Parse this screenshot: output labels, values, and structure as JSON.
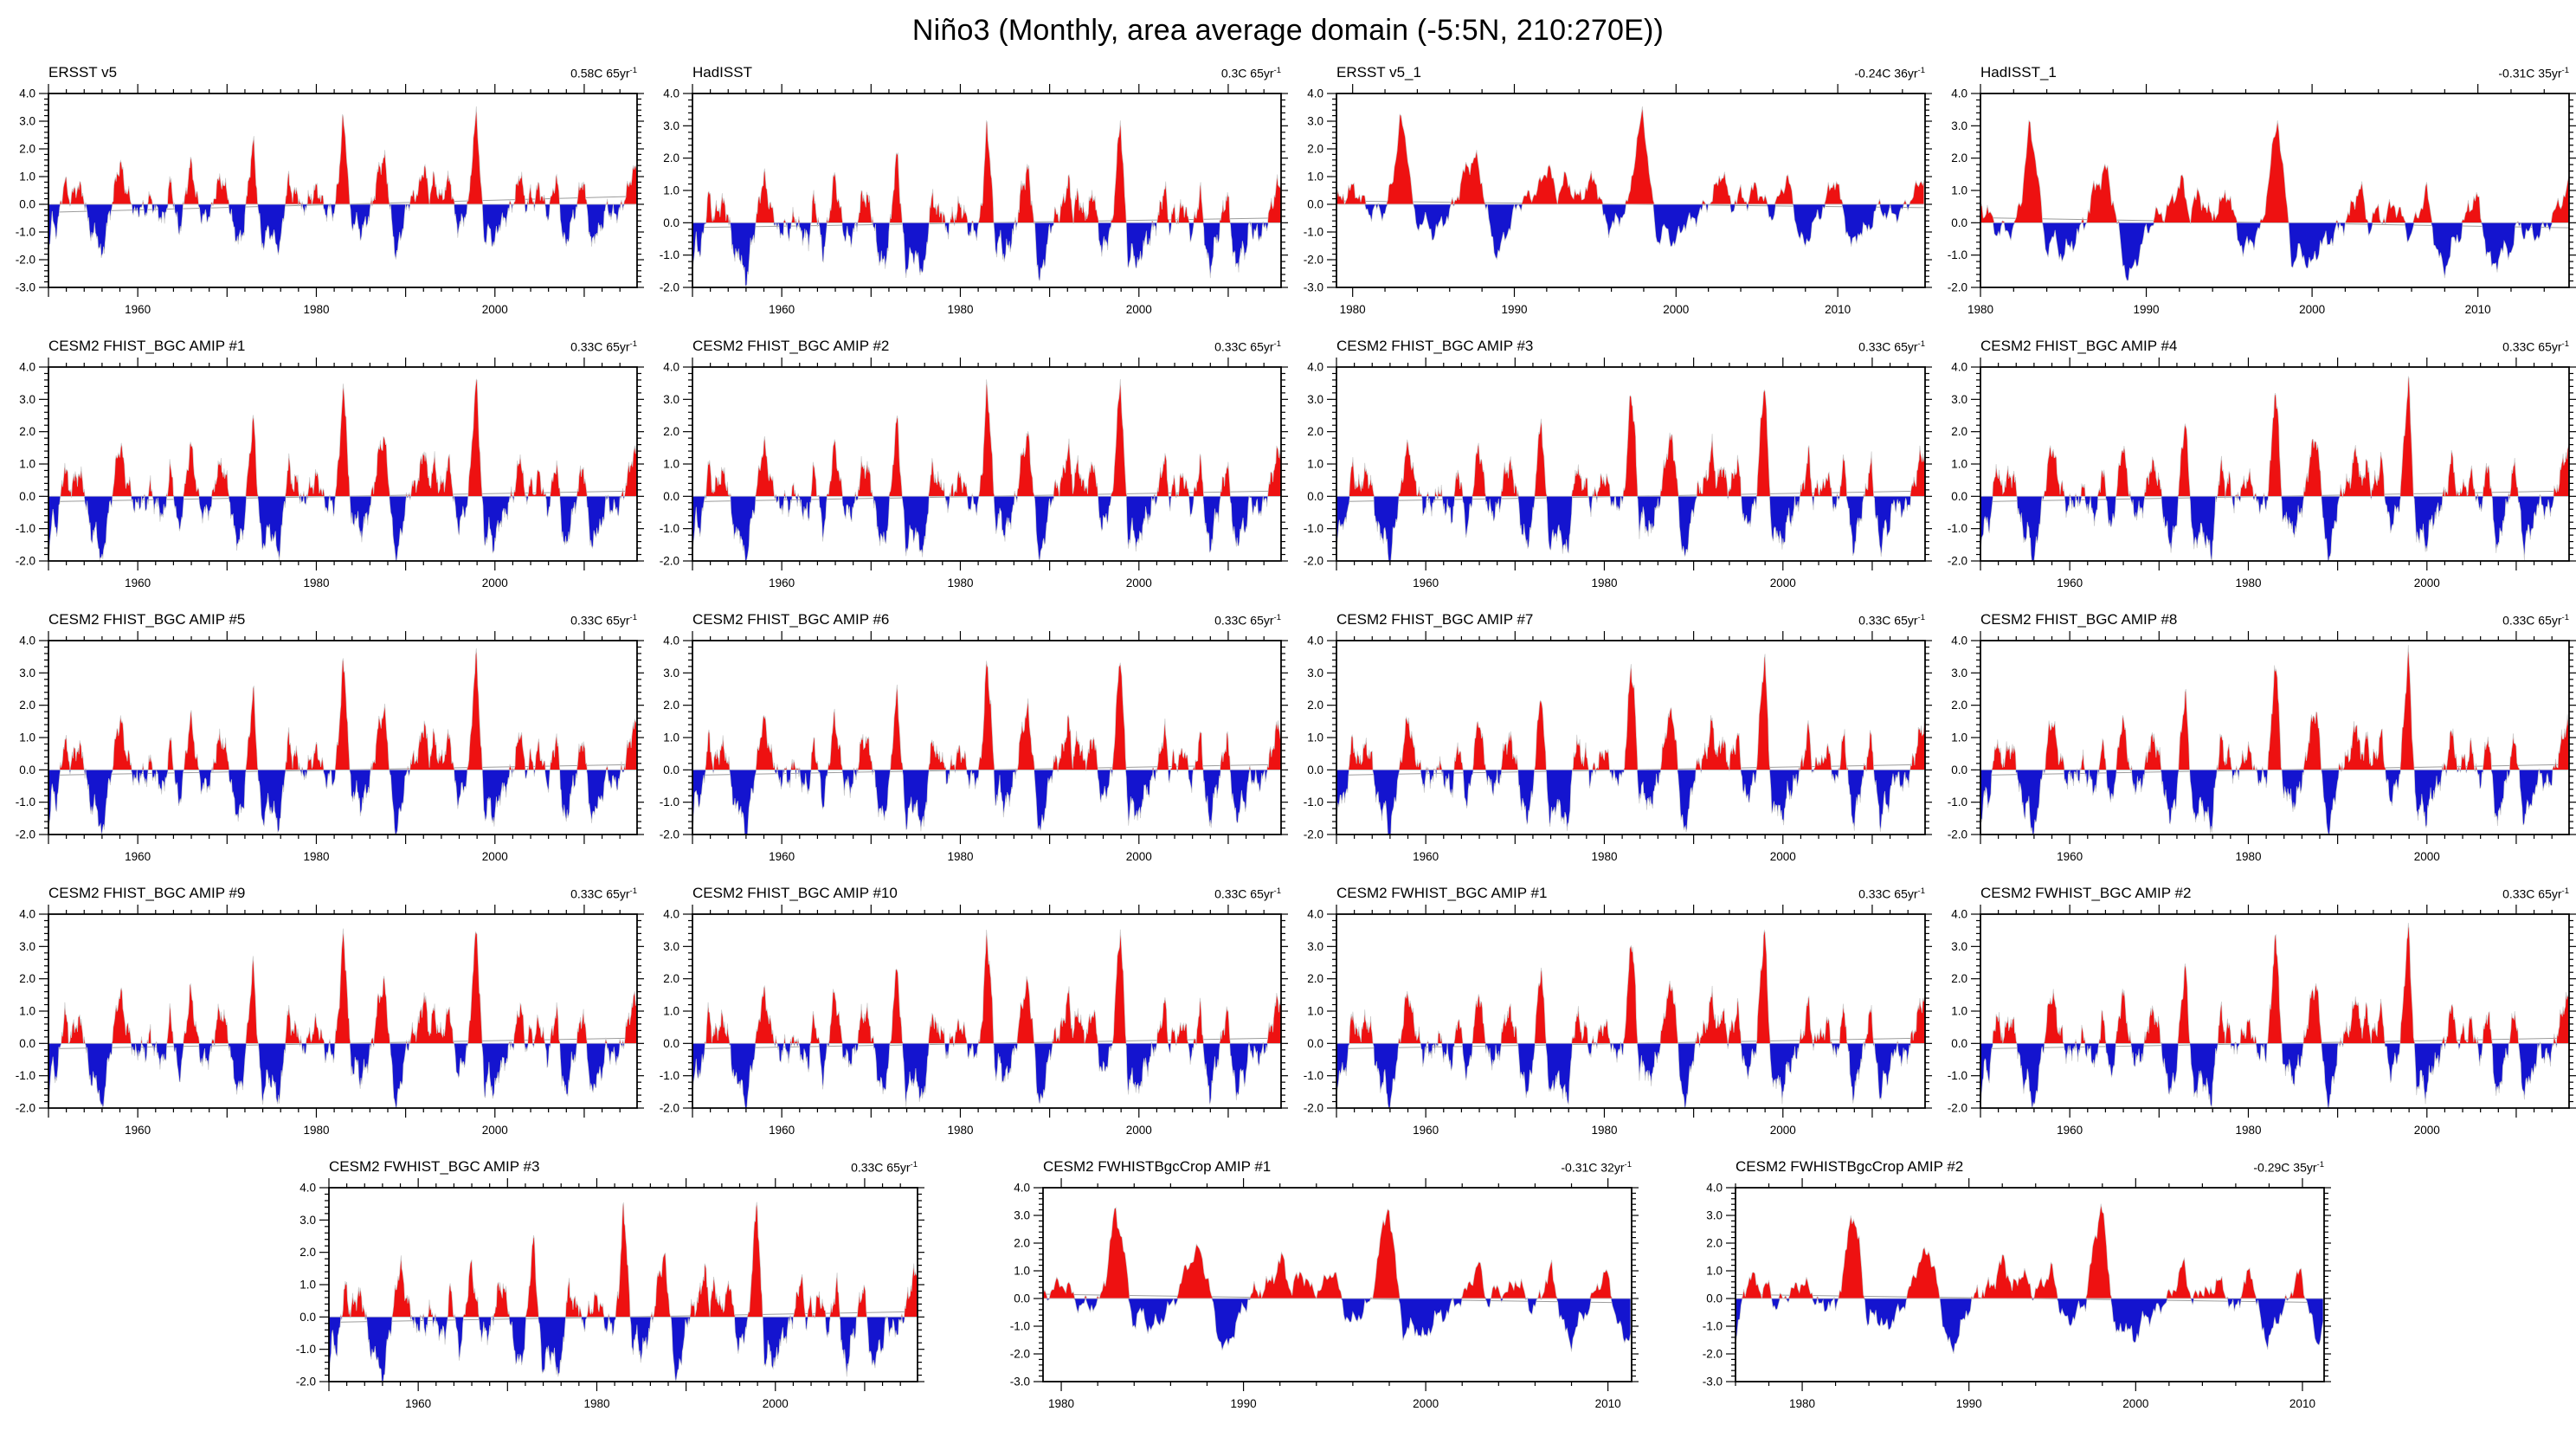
{
  "page": {
    "title": "Niño3 (Monthly, area average domain (-5:5N, 210:270E))"
  },
  "chart_data": {
    "type": "area",
    "description": "Monthly Niño3 SST anomaly time series (degC), red above zero and blue below, with gray zero line and gray linear trend line in each panel",
    "units": "C",
    "legend_position": "none",
    "grid": false,
    "colors": {
      "positive": "#ee1111",
      "negative": "#1414cf",
      "outline": "#c9c9c9",
      "zero_line": "#a9a9a9",
      "trend_line": "#9c9c9c",
      "frame": "#000000"
    },
    "y_minor_step": 0.2,
    "x_minor_step": 2,
    "noise": {
      "a1": 0.2,
      "f1": 8.1,
      "a2": 0.13,
      "f2": 19.7,
      "a3": 0.09,
      "f3": 37.3
    },
    "base_profile": [
      [
        1950.0,
        -1.7
      ],
      [
        1950.4,
        -0.6
      ],
      [
        1950.9,
        -1.0
      ],
      [
        1951.3,
        -0.2
      ],
      [
        1951.8,
        1.0
      ],
      [
        1952.3,
        0.2
      ],
      [
        1952.8,
        0.4
      ],
      [
        1953.3,
        0.7
      ],
      [
        1953.9,
        0.4
      ],
      [
        1954.4,
        -0.6
      ],
      [
        1954.9,
        -1.2
      ],
      [
        1955.4,
        -1.0
      ],
      [
        1955.95,
        -2.1
      ],
      [
        1956.5,
        -0.9
      ],
      [
        1957.1,
        0.0
      ],
      [
        1957.7,
        1.2
      ],
      [
        1958.1,
        1.5
      ],
      [
        1958.7,
        0.5
      ],
      [
        1959.2,
        0.2
      ],
      [
        1959.7,
        -0.4
      ],
      [
        1960.3,
        -0.1
      ],
      [
        1960.9,
        -0.3
      ],
      [
        1961.4,
        0.3
      ],
      [
        1961.9,
        -0.2
      ],
      [
        1962.5,
        -0.4
      ],
      [
        1963.0,
        -0.6
      ],
      [
        1963.6,
        0.9
      ],
      [
        1964.0,
        0.2
      ],
      [
        1964.6,
        -1.1
      ],
      [
        1965.1,
        -0.2
      ],
      [
        1965.9,
        1.6
      ],
      [
        1966.4,
        0.7
      ],
      [
        1967.0,
        -0.4
      ],
      [
        1967.7,
        -0.5
      ],
      [
        1968.3,
        -0.2
      ],
      [
        1968.9,
        0.8
      ],
      [
        1969.5,
        0.9
      ],
      [
        1970.1,
        0.3
      ],
      [
        1970.7,
        -0.9
      ],
      [
        1971.3,
        -1.4
      ],
      [
        1971.9,
        -0.9
      ],
      [
        1972.4,
        0.9
      ],
      [
        1972.95,
        2.4
      ],
      [
        1973.4,
        0.3
      ],
      [
        1973.9,
        -1.6
      ],
      [
        1974.5,
        -1.0
      ],
      [
        1975.0,
        -1.1
      ],
      [
        1975.9,
        -1.7
      ],
      [
        1976.4,
        -0.2
      ],
      [
        1976.9,
        1.0
      ],
      [
        1977.4,
        0.3
      ],
      [
        1977.9,
        0.5
      ],
      [
        1978.4,
        -0.3
      ],
      [
        1979.0,
        0.1
      ],
      [
        1979.5,
        0.3
      ],
      [
        1979.95,
        0.6
      ],
      [
        1980.5,
        0.3
      ],
      [
        1981.0,
        -0.3
      ],
      [
        1981.5,
        -0.2
      ],
      [
        1982.0,
        -0.3
      ],
      [
        1982.5,
        1.0
      ],
      [
        1982.95,
        3.25
      ],
      [
        1983.4,
        2.0
      ],
      [
        1983.9,
        -0.9
      ],
      [
        1984.4,
        -0.5
      ],
      [
        1984.9,
        -1.1
      ],
      [
        1985.4,
        -0.8
      ],
      [
        1985.9,
        -0.4
      ],
      [
        1986.4,
        0.2
      ],
      [
        1986.9,
        1.2
      ],
      [
        1987.6,
        1.8
      ],
      [
        1988.1,
        0.5
      ],
      [
        1988.6,
        -1.3
      ],
      [
        1988.95,
        -1.9
      ],
      [
        1989.5,
        -1.1
      ],
      [
        1990.0,
        -0.3
      ],
      [
        1990.5,
        0.2
      ],
      [
        1991.0,
        0.3
      ],
      [
        1991.5,
        0.6
      ],
      [
        1992.1,
        1.5
      ],
      [
        1992.6,
        0.3
      ],
      [
        1993.2,
        1.0
      ],
      [
        1993.8,
        0.2
      ],
      [
        1994.4,
        0.5
      ],
      [
        1994.95,
        1.1
      ],
      [
        1995.5,
        -0.4
      ],
      [
        1995.9,
        -0.9
      ],
      [
        1996.5,
        -0.5
      ],
      [
        1997.0,
        -0.1
      ],
      [
        1997.5,
        2.0
      ],
      [
        1997.95,
        3.5
      ],
      [
        1998.35,
        1.2
      ],
      [
        1998.8,
        -1.4
      ],
      [
        1999.3,
        -0.9
      ],
      [
        1999.9,
        -1.5
      ],
      [
        2000.5,
        -0.7
      ],
      [
        2001.0,
        -0.6
      ],
      [
        2001.6,
        -0.2
      ],
      [
        2002.2,
        0.2
      ],
      [
        2002.9,
        1.3
      ],
      [
        2003.4,
        -0.2
      ],
      [
        2003.9,
        0.4
      ],
      [
        2004.4,
        0.1
      ],
      [
        2004.9,
        0.7
      ],
      [
        2005.4,
        0.2
      ],
      [
        2005.9,
        -0.5
      ],
      [
        2006.4,
        0.3
      ],
      [
        2006.9,
        1.1
      ],
      [
        2007.5,
        -0.9
      ],
      [
        2007.95,
        -1.6
      ],
      [
        2008.5,
        -0.7
      ],
      [
        2008.9,
        -0.4
      ],
      [
        2009.4,
        0.4
      ],
      [
        2009.9,
        1.0
      ],
      [
        2010.4,
        -0.5
      ],
      [
        2010.9,
        -1.6
      ],
      [
        2011.4,
        -0.9
      ],
      [
        2011.9,
        -1.0
      ],
      [
        2012.4,
        -0.1
      ],
      [
        2012.9,
        -0.3
      ],
      [
        2013.4,
        -0.4
      ],
      [
        2013.9,
        -0.3
      ],
      [
        2014.4,
        0.1
      ],
      [
        2014.9,
        0.6
      ],
      [
        2015.4,
        1.2
      ],
      [
        2015.92,
        1.3
      ]
    ],
    "charts": [
      {
        "title": "ERSST v5",
        "trend_label": "0.58C 65yr",
        "trend_sup": "-1",
        "trend_value": 0.58,
        "y_range": [
          -3,
          4
        ],
        "x_range": [
          1950,
          2015.92
        ],
        "x_labels": [
          1960,
          1980,
          2000
        ],
        "row": 1,
        "col": 1,
        "amp": 0.97,
        "seed": 3
      },
      {
        "title": "HadISST",
        "trend_label": "0.3C 65yr",
        "trend_sup": "-1",
        "trend_value": 0.3,
        "y_range": [
          -2,
          4
        ],
        "x_range": [
          1950,
          2015.92
        ],
        "x_labels": [
          1960,
          1980,
          2000
        ],
        "row": 1,
        "col": 2,
        "amp": 0.93,
        "seed": 11
      },
      {
        "title": "ERSST v5_1",
        "trend_label": "-0.24C 36yr",
        "trend_sup": "-1",
        "trend_value": -0.24,
        "y_range": [
          -3,
          4
        ],
        "x_range": [
          1979,
          2015.4
        ],
        "x_labels": [
          1980,
          1990,
          2000,
          2010
        ],
        "row": 1,
        "col": 3,
        "amp": 0.97,
        "seed": 3
      },
      {
        "title": "HadISST_1",
        "trend_label": "-0.31C 35yr",
        "trend_sup": "-1",
        "trend_value": -0.31,
        "y_range": [
          -2,
          4
        ],
        "x_range": [
          1980,
          2015.5
        ],
        "x_labels": [
          1980,
          1990,
          2000,
          2010
        ],
        "row": 1,
        "col": 4,
        "amp": 0.93,
        "seed": 11
      },
      {
        "title": "CESM2 FHIST_BGC AMIP #1",
        "trend_label": "0.33C 65yr",
        "trend_sup": "-1",
        "trend_value": 0.33,
        "y_range": [
          -2,
          4
        ],
        "x_range": [
          1950,
          2015.92
        ],
        "x_labels": [
          1960,
          1980,
          2000
        ],
        "row": 2,
        "col": 1,
        "amp": 1.05,
        "seed": 21
      },
      {
        "title": "CESM2 FHIST_BGC AMIP #2",
        "trend_label": "0.33C 65yr",
        "trend_sup": "-1",
        "trend_value": 0.33,
        "y_range": [
          -2,
          4
        ],
        "x_range": [
          1950,
          2015.92
        ],
        "x_labels": [
          1960,
          1980,
          2000
        ],
        "row": 2,
        "col": 2,
        "amp": 1.05,
        "seed": 22
      },
      {
        "title": "CESM2 FHIST_BGC AMIP #3",
        "trend_label": "0.33C 65yr",
        "trend_sup": "-1",
        "trend_value": 0.33,
        "y_range": [
          -2,
          4
        ],
        "x_range": [
          1950,
          2015.92
        ],
        "x_labels": [
          1960,
          1980,
          2000
        ],
        "row": 2,
        "col": 3,
        "amp": 1.05,
        "seed": 23
      },
      {
        "title": "CESM2 FHIST_BGC AMIP #4",
        "trend_label": "0.33C 65yr",
        "trend_sup": "-1",
        "trend_value": 0.33,
        "y_range": [
          -2,
          4
        ],
        "x_range": [
          1950,
          2015.92
        ],
        "x_labels": [
          1960,
          1980,
          2000
        ],
        "row": 2,
        "col": 4,
        "amp": 1.05,
        "seed": 24
      },
      {
        "title": "CESM2 FHIST_BGC AMIP #5",
        "trend_label": "0.33C 65yr",
        "trend_sup": "-1",
        "trend_value": 0.33,
        "y_range": [
          -2,
          4
        ],
        "x_range": [
          1950,
          2015.92
        ],
        "x_labels": [
          1960,
          1980,
          2000
        ],
        "row": 3,
        "col": 1,
        "amp": 1.05,
        "seed": 25
      },
      {
        "title": "CESM2 FHIST_BGC AMIP #6",
        "trend_label": "0.33C 65yr",
        "trend_sup": "-1",
        "trend_value": 0.33,
        "y_range": [
          -2,
          4
        ],
        "x_range": [
          1950,
          2015.92
        ],
        "x_labels": [
          1960,
          1980,
          2000
        ],
        "row": 3,
        "col": 2,
        "amp": 1.05,
        "seed": 26
      },
      {
        "title": "CESM2 FHIST_BGC AMIP #7",
        "trend_label": "0.33C 65yr",
        "trend_sup": "-1",
        "trend_value": 0.33,
        "y_range": [
          -2,
          4
        ],
        "x_range": [
          1950,
          2015.92
        ],
        "x_labels": [
          1960,
          1980,
          2000
        ],
        "row": 3,
        "col": 3,
        "amp": 1.05,
        "seed": 27
      },
      {
        "title": "CESM2 FHIST_BGC AMIP #8",
        "trend_label": "0.33C 65yr",
        "trend_sup": "-1",
        "trend_value": 0.33,
        "y_range": [
          -2,
          4
        ],
        "x_range": [
          1950,
          2015.92
        ],
        "x_labels": [
          1960,
          1980,
          2000
        ],
        "row": 3,
        "col": 4,
        "amp": 1.05,
        "seed": 28
      },
      {
        "title": "CESM2 FHIST_BGC AMIP #9",
        "trend_label": "0.33C 65yr",
        "trend_sup": "-1",
        "trend_value": 0.33,
        "y_range": [
          -2,
          4
        ],
        "x_range": [
          1950,
          2015.92
        ],
        "x_labels": [
          1960,
          1980,
          2000
        ],
        "row": 4,
        "col": 1,
        "amp": 1.05,
        "seed": 29
      },
      {
        "title": "CESM2 FHIST_BGC AMIP #10",
        "trend_label": "0.33C 65yr",
        "trend_sup": "-1",
        "trend_value": 0.33,
        "y_range": [
          -2,
          4
        ],
        "x_range": [
          1950,
          2015.92
        ],
        "x_labels": [
          1960,
          1980,
          2000
        ],
        "row": 4,
        "col": 2,
        "amp": 1.05,
        "seed": 30
      },
      {
        "title": "CESM2 FWHIST_BGC AMIP #1",
        "trend_label": "0.33C 65yr",
        "trend_sup": "-1",
        "trend_value": 0.33,
        "y_range": [
          -2,
          4
        ],
        "x_range": [
          1950,
          2015.92
        ],
        "x_labels": [
          1960,
          1980,
          2000
        ],
        "row": 4,
        "col": 3,
        "amp": 1.05,
        "seed": 31
      },
      {
        "title": "CESM2 FWHIST_BGC AMIP #2",
        "trend_label": "0.33C 65yr",
        "trend_sup": "-1",
        "trend_value": 0.33,
        "y_range": [
          -2,
          4
        ],
        "x_range": [
          1950,
          2015.92
        ],
        "x_labels": [
          1960,
          1980,
          2000
        ],
        "row": 4,
        "col": 4,
        "amp": 1.05,
        "seed": 32
      },
      {
        "title": "CESM2 FWHIST_BGC AMIP #3",
        "trend_label": "0.33C 65yr",
        "trend_sup": "-1",
        "trend_value": 0.33,
        "y_range": [
          -2,
          4
        ],
        "x_range": [
          1950,
          2015.92
        ],
        "x_labels": [
          1960,
          1980,
          2000
        ],
        "row": 5,
        "col": 1,
        "amp": 1.05,
        "seed": 33
      },
      {
        "title": "CESM2 FWHISTBgcCrop AMIP #1",
        "trend_label": "-0.31C 32yr",
        "trend_sup": "-1",
        "trend_value": -0.31,
        "y_range": [
          -3,
          4
        ],
        "x_range": [
          1979,
          2011.3
        ],
        "x_labels": [
          1980,
          1990,
          2000,
          2010
        ],
        "row": 5,
        "col": 2,
        "amp": 1.0,
        "seed": 41
      },
      {
        "title": "CESM2 FWHISTBgcCrop AMIP #2",
        "trend_label": "-0.29C 35yr",
        "trend_sup": "-1",
        "trend_value": -0.29,
        "y_range": [
          -3,
          4
        ],
        "x_range": [
          1976,
          2011.3
        ],
        "x_labels": [
          1980,
          1990,
          2000,
          2010
        ],
        "row": 5,
        "col": 3,
        "amp": 1.0,
        "seed": 42
      }
    ]
  }
}
